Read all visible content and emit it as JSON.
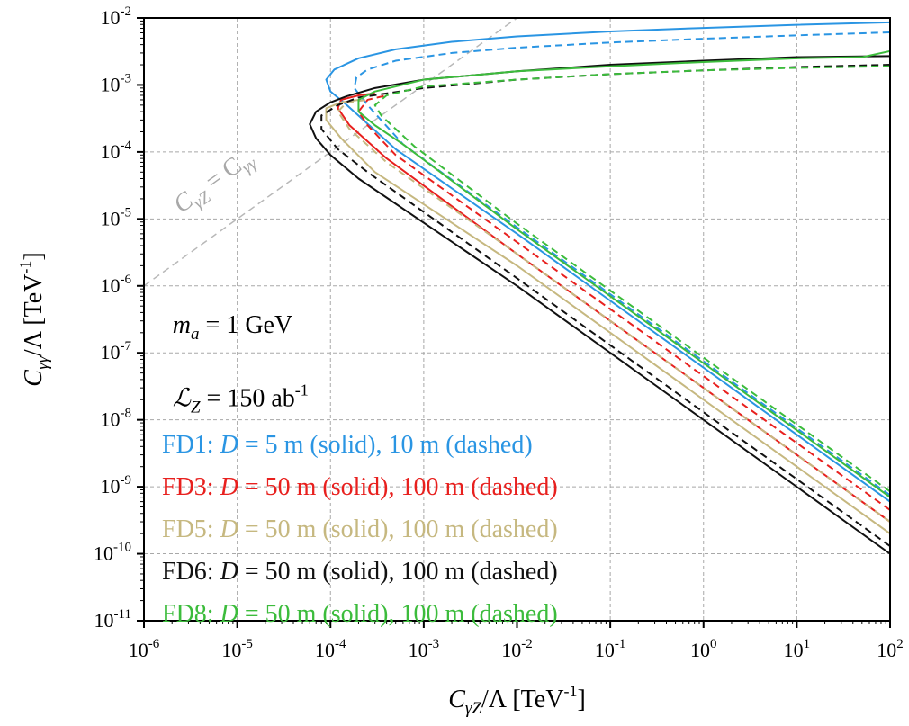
{
  "chart_data": {
    "type": "line",
    "xscale": "log",
    "yscale": "log",
    "xlim": [
      1e-06,
      100
    ],
    "ylim": [
      1e-11,
      0.01
    ],
    "grid": true,
    "xlabel": {
      "main": "C",
      "sub": "γZ",
      "rest": "/Λ [TeV",
      "sup": "-1",
      "end": "]"
    },
    "ylabel": {
      "main": "C",
      "sub": "γγ",
      "rest": "/Λ [TeV",
      "sup": "-1",
      "end": "]"
    },
    "x_ticks": [
      {
        "value": 1e-06,
        "base": "10",
        "exp": "-6"
      },
      {
        "value": 1e-05,
        "base": "10",
        "exp": "-5"
      },
      {
        "value": 0.0001,
        "base": "10",
        "exp": "-4"
      },
      {
        "value": 0.001,
        "base": "10",
        "exp": "-3"
      },
      {
        "value": 0.01,
        "base": "10",
        "exp": "-2"
      },
      {
        "value": 0.1,
        "base": "10",
        "exp": "-1"
      },
      {
        "value": 1,
        "base": "10",
        "exp": "0"
      },
      {
        "value": 10,
        "base": "10",
        "exp": "1"
      },
      {
        "value": 100,
        "base": "10",
        "exp": "2"
      }
    ],
    "y_ticks": [
      {
        "value": 1e-11,
        "base": "10",
        "exp": "-11"
      },
      {
        "value": 1e-10,
        "base": "10",
        "exp": "-10"
      },
      {
        "value": 1e-09,
        "base": "10",
        "exp": "-9"
      },
      {
        "value": 1e-08,
        "base": "10",
        "exp": "-8"
      },
      {
        "value": 1e-07,
        "base": "10",
        "exp": "-7"
      },
      {
        "value": 1e-06,
        "base": "10",
        "exp": "-6"
      },
      {
        "value": 1e-05,
        "base": "10",
        "exp": "-5"
      },
      {
        "value": 0.0001,
        "base": "10",
        "exp": "-4"
      },
      {
        "value": 0.001,
        "base": "10",
        "exp": "-3"
      },
      {
        "value": 0.01,
        "base": "10",
        "exp": "-2"
      }
    ],
    "diagonal": {
      "label": "C",
      "sub1": "γZ",
      "eq": " = C",
      "sub2": "γγ",
      "color": "#b8b8b8",
      "points": [
        [
          1e-06,
          1e-06
        ],
        [
          0.02,
          0.02
        ]
      ],
      "label_at": [
        2.5e-06,
        1.2e-05
      ]
    },
    "annotations": [
      {
        "main": "m",
        "sub": "a",
        "rest": " = 1 GeV",
        "at": [
          1.3e-06,
          2e-07
        ]
      },
      {
        "main": "ℒ",
        "sub": "Z",
        "rest": " = 150 ab",
        "sup": "-1",
        "at": [
          1.3e-06,
          1.6e-08
        ]
      }
    ],
    "legend": {
      "placement": "bottom-left",
      "entries": [
        {
          "name": "FD1",
          "color": "#2a95e3",
          "text": ": D =   5 m (solid),   10 m (dashed)",
          "prefix": "FD1: ",
          "dlabel": "D",
          "suffix": " =   5 m (solid),   10 m (dashed)"
        },
        {
          "name": "FD3",
          "color": "#e8201e",
          "prefix": "FD3: ",
          "dlabel": "D",
          "suffix": " = 50 m (solid), 100 m (dashed)"
        },
        {
          "name": "FD5",
          "color": "#c6b880",
          "prefix": "FD5: ",
          "dlabel": "D",
          "suffix": " = 50 m (solid), 100 m (dashed)"
        },
        {
          "name": "FD6",
          "color": "#111111",
          "prefix": "FD6: ",
          "dlabel": "D",
          "suffix": " = 50 m (solid), 100 m (dashed)"
        },
        {
          "name": "FD8",
          "color": "#3cbc3c",
          "prefix": "FD8: ",
          "dlabel": "D",
          "suffix": " = 50 m (solid), 100 m (dashed)"
        }
      ]
    },
    "series": [
      {
        "name": "FD1",
        "style": "solid",
        "color": "#2a95e3",
        "points": [
          [
            100,
            6e-10
          ],
          [
            1,
            6e-08
          ],
          [
            0.01,
            6e-06
          ],
          [
            0.0005,
            0.00011
          ],
          [
            0.00015,
            0.0005
          ],
          [
            0.0001,
            0.0008
          ],
          [
            9e-05,
            0.0012
          ],
          [
            0.00011,
            0.0017
          ],
          [
            0.0002,
            0.0025
          ],
          [
            0.0005,
            0.0034
          ],
          [
            0.002,
            0.0044
          ],
          [
            0.01,
            0.0053
          ],
          [
            0.1,
            0.0063
          ],
          [
            1,
            0.0071
          ],
          [
            10,
            0.0079
          ],
          [
            100,
            0.0086
          ]
        ]
      },
      {
        "name": "FD1",
        "style": "dashed",
        "color": "#2a95e3",
        "points": [
          [
            100,
            7.5e-10
          ],
          [
            1,
            7.5e-08
          ],
          [
            0.01,
            7.5e-06
          ],
          [
            0.0006,
            0.00013
          ],
          [
            0.00025,
            0.0005
          ],
          [
            0.00018,
            0.0009
          ],
          [
            0.00019,
            0.0013
          ],
          [
            0.00025,
            0.0017
          ],
          [
            0.0005,
            0.0023
          ],
          [
            0.002,
            0.003
          ],
          [
            0.01,
            0.0036
          ],
          [
            0.1,
            0.0043
          ],
          [
            1,
            0.0049
          ],
          [
            10,
            0.0055
          ],
          [
            100,
            0.0061
          ]
        ]
      },
      {
        "name": "FD3",
        "style": "solid",
        "color": "#e8201e",
        "points": [
          [
            100,
            3e-10
          ],
          [
            1,
            3e-08
          ],
          [
            0.01,
            3e-06
          ],
          [
            0.0004,
            8e-05
          ],
          [
            0.00016,
            0.00025
          ],
          [
            0.00012,
            0.00045
          ],
          [
            0.00013,
            0.0006
          ],
          [
            0.0002,
            0.0007
          ],
          [
            0.0003,
            0.00075
          ]
        ]
      },
      {
        "name": "FD3",
        "style": "dashed",
        "color": "#e8201e",
        "points": [
          [
            100,
            4.5e-10
          ],
          [
            1,
            4.5e-08
          ],
          [
            0.01,
            4.5e-06
          ],
          [
            0.0005,
            9e-05
          ],
          [
            0.00025,
            0.00025
          ],
          [
            0.0002,
            0.0004
          ],
          [
            0.00025,
            0.0006
          ],
          [
            0.0004,
            0.0007
          ]
        ]
      },
      {
        "name": "FD5",
        "style": "solid",
        "color": "#c6b880",
        "points": [
          [
            100,
            2e-10
          ],
          [
            1,
            2e-08
          ],
          [
            0.01,
            2e-06
          ],
          [
            0.0003,
            5e-05
          ],
          [
            0.00013,
            0.00016
          ],
          [
            9e-05,
            0.0003
          ],
          [
            9e-05,
            0.00045
          ],
          [
            0.00013,
            0.00055
          ],
          [
            0.0002,
            0.0006
          ]
        ]
      },
      {
        "name": "FD5",
        "style": "dashed",
        "color": "#c6b880",
        "points": [
          [
            100,
            3e-10
          ],
          [
            1,
            3e-08
          ],
          [
            0.01,
            3e-06
          ],
          [
            0.0004,
            7e-05
          ],
          [
            0.00016,
            0.00022
          ],
          [
            0.00012,
            0.0004
          ],
          [
            0.00015,
            0.00055
          ],
          [
            0.00025,
            0.0006
          ]
        ]
      },
      {
        "name": "FD6",
        "style": "solid",
        "color": "#111111",
        "points": [
          [
            100,
            1e-10
          ],
          [
            1,
            1e-08
          ],
          [
            0.01,
            1e-06
          ],
          [
            0.0002,
            4e-05
          ],
          [
            0.0001,
            9e-05
          ],
          [
            7e-05,
            0.00016
          ],
          [
            6e-05,
            0.00026
          ],
          [
            7e-05,
            0.0004
          ],
          [
            0.0001,
            0.00055
          ],
          [
            0.00015,
            0.00068
          ],
          [
            0.0003,
            0.0009
          ],
          [
            0.001,
            0.0012
          ],
          [
            0.01,
            0.0016
          ],
          [
            0.1,
            0.002
          ],
          [
            1,
            0.0023
          ],
          [
            10,
            0.0026
          ],
          [
            100,
            0.0027
          ]
        ]
      },
      {
        "name": "FD6",
        "style": "dashed",
        "color": "#111111",
        "points": [
          [
            100,
            1.3e-10
          ],
          [
            1,
            1.3e-08
          ],
          [
            0.01,
            1.3e-06
          ],
          [
            0.00025,
            5e-05
          ],
          [
            0.00012,
            0.00011
          ],
          [
            8e-05,
            0.00022
          ],
          [
            8e-05,
            0.00035
          ],
          [
            0.00012,
            0.0005
          ],
          [
            0.0002,
            0.00065
          ],
          [
            0.001,
            0.0009
          ],
          [
            0.01,
            0.0012
          ],
          [
            0.1,
            0.00145
          ],
          [
            1,
            0.00165
          ],
          [
            10,
            0.00185
          ],
          [
            100,
            0.002
          ]
        ]
      },
      {
        "name": "FD8",
        "style": "solid",
        "color": "#3cbc3c",
        "points": [
          [
            100,
            7e-10
          ],
          [
            1,
            7e-08
          ],
          [
            0.01,
            7e-06
          ],
          [
            0.0006,
            0.00013
          ],
          [
            0.0003,
            0.00025
          ],
          [
            0.0002,
            0.0004
          ],
          [
            0.0002,
            0.0006
          ],
          [
            0.0003,
            0.0008
          ],
          [
            0.001,
            0.0012
          ],
          [
            0.01,
            0.0016
          ],
          [
            0.1,
            0.0019
          ],
          [
            1,
            0.0022
          ],
          [
            10,
            0.0025
          ],
          [
            50,
            0.0026
          ],
          [
            100,
            0.0032
          ]
        ]
      },
      {
        "name": "FD8",
        "style": "dashed",
        "color": "#3cbc3c",
        "points": [
          [
            100,
            8.5e-10
          ],
          [
            1,
            8.5e-08
          ],
          [
            0.01,
            8.5e-06
          ],
          [
            0.0008,
            0.00012
          ],
          [
            0.0005,
            0.00022
          ],
          [
            0.00035,
            0.00035
          ],
          [
            0.0003,
            0.0005
          ],
          [
            0.0004,
            0.0007
          ],
          [
            0.001,
            0.00095
          ],
          [
            0.01,
            0.0012
          ],
          [
            0.1,
            0.00145
          ],
          [
            1,
            0.00165
          ],
          [
            10,
            0.0018
          ],
          [
            100,
            0.0019
          ]
        ]
      }
    ]
  }
}
